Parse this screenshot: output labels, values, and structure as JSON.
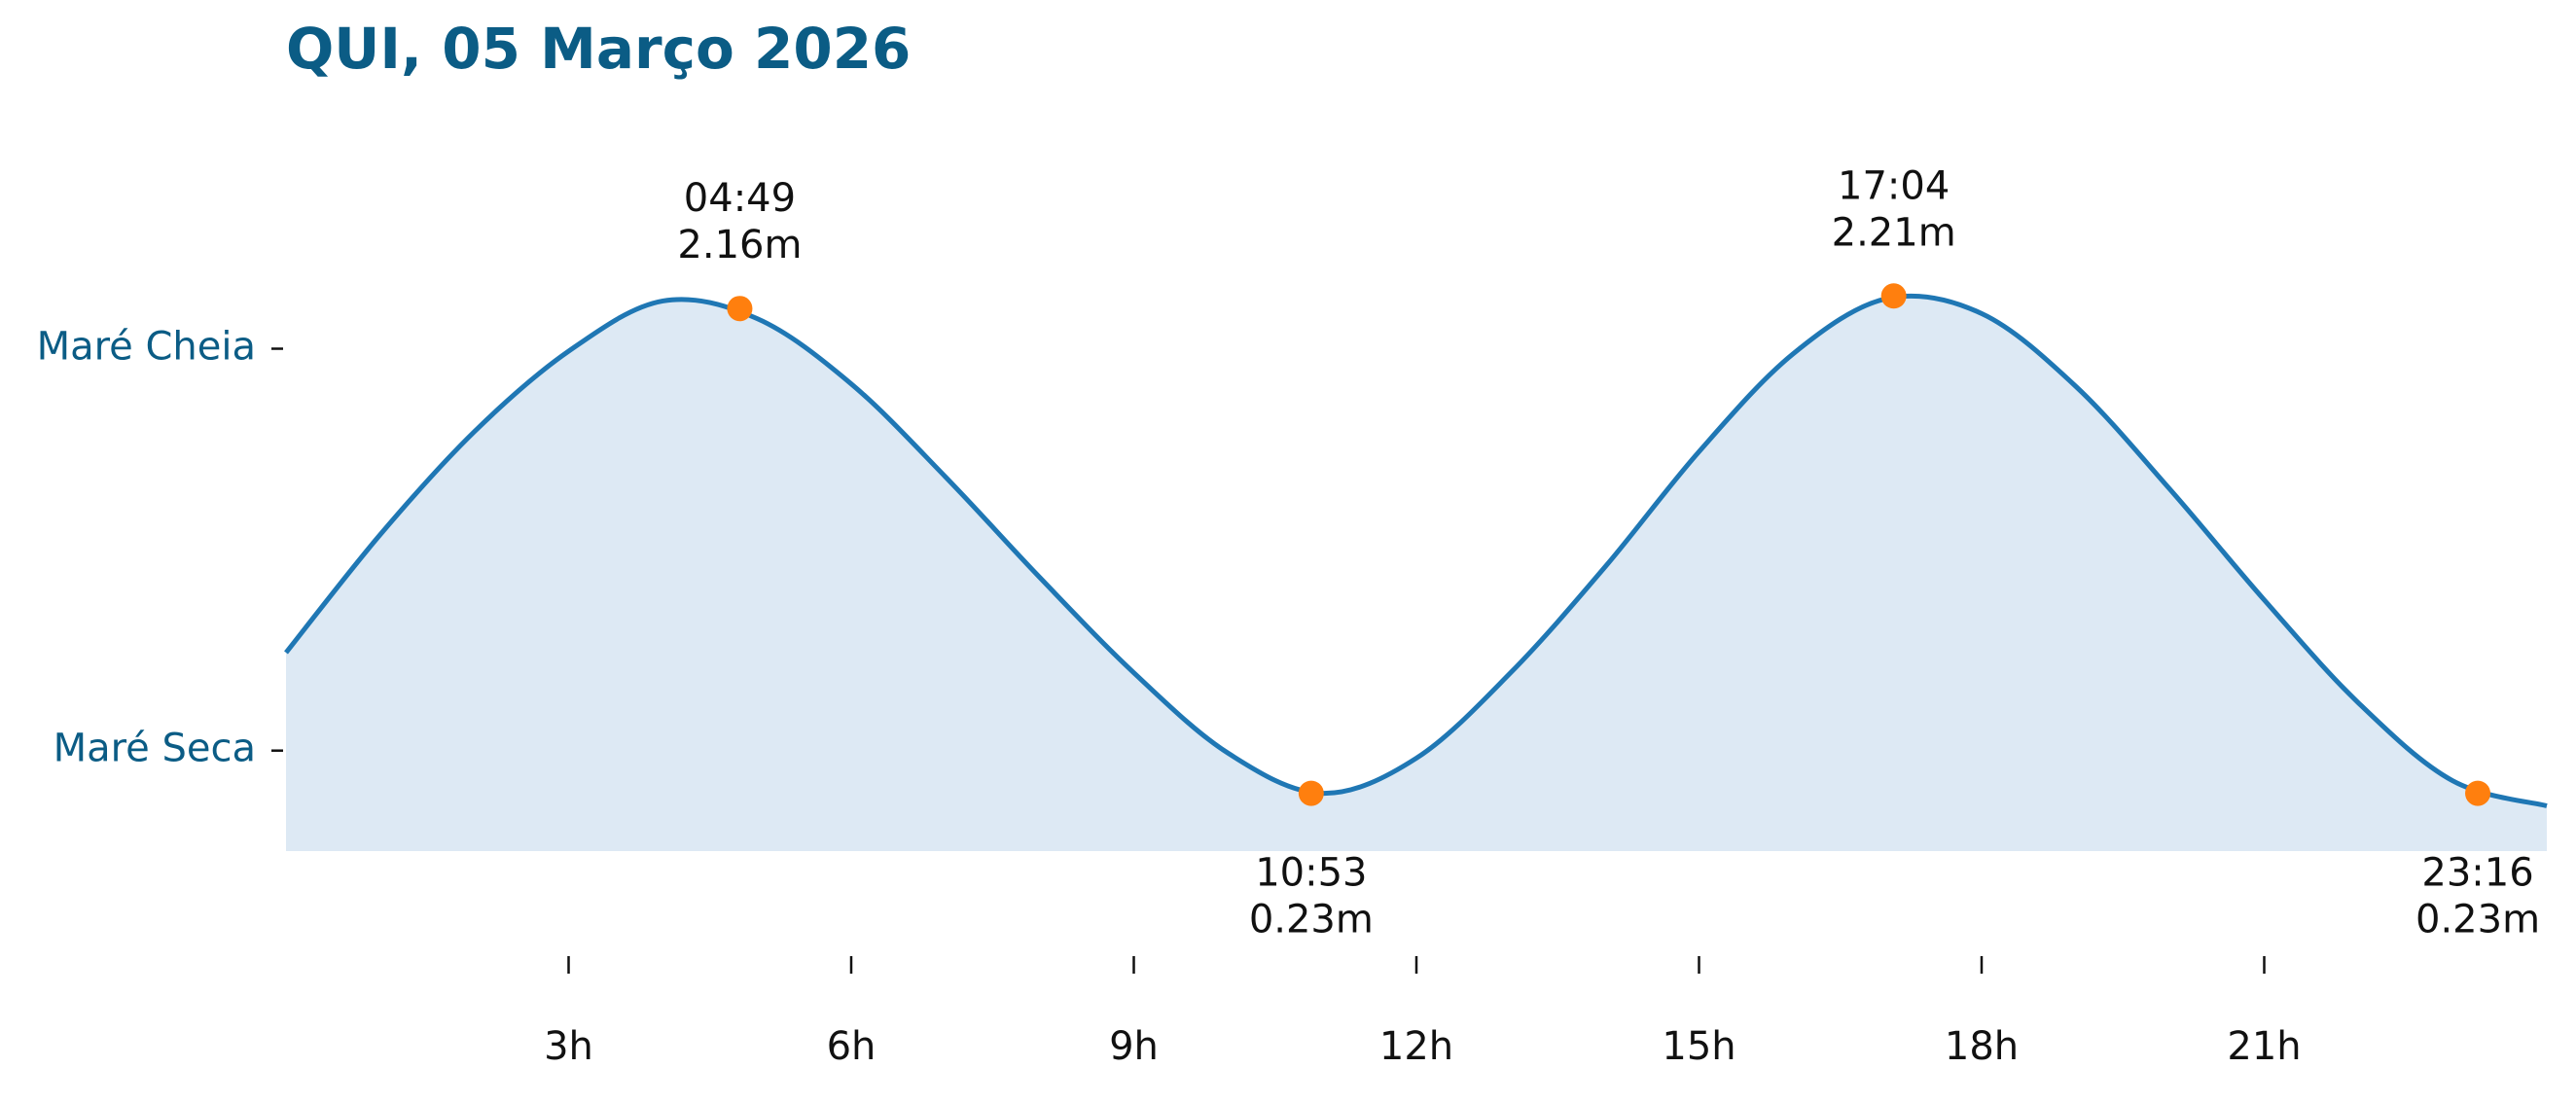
{
  "chart_data": {
    "type": "line",
    "title": "QUI, 05 Março 2026",
    "x": [
      0,
      1,
      2,
      3,
      4,
      5,
      6,
      7,
      8,
      9,
      10,
      11,
      12,
      13,
      14,
      15,
      16,
      17,
      18,
      19,
      20,
      21,
      22,
      23,
      24
    ],
    "series": [
      {
        "color": "#1f77b4",
        "fill": "#dde9f4",
        "values": [
          0.79,
          1.26,
          1.67,
          1.99,
          2.19,
          2.12,
          1.86,
          1.49,
          1.09,
          0.71,
          0.39,
          0.23,
          0.37,
          0.71,
          1.13,
          1.59,
          1.98,
          2.2,
          2.14,
          1.85,
          1.44,
          1.0,
          0.59,
          0.28,
          0.18
        ]
      }
    ],
    "extremes": {
      "color": "#ff7f0e",
      "x": [
        4.817,
        10.883,
        17.067,
        23.267
      ],
      "times": [
        "04:49",
        "10:53",
        "17:04",
        "23:16"
      ],
      "values": [
        2.16,
        0.23,
        2.21,
        0.23
      ],
      "value_labels": [
        "2.16m",
        "0.23m",
        "2.21m",
        "0.23m"
      ]
    },
    "xlim": [
      0,
      24
    ],
    "xticks": [
      {
        "value": 3,
        "label": "3h"
      },
      {
        "value": 6,
        "label": "6h"
      },
      {
        "value": 9,
        "label": "9h"
      },
      {
        "value": 12,
        "label": "12h"
      },
      {
        "value": 15,
        "label": "15h"
      },
      {
        "value": 18,
        "label": "18h"
      },
      {
        "value": 21,
        "label": "21h"
      }
    ],
    "ylim": [
      0,
      2.85
    ],
    "yticks": [
      {
        "value": 2.0,
        "label": "Maré Cheia"
      },
      {
        "value": 0.4,
        "label": "Maré Seca"
      }
    ],
    "grid": false
  }
}
